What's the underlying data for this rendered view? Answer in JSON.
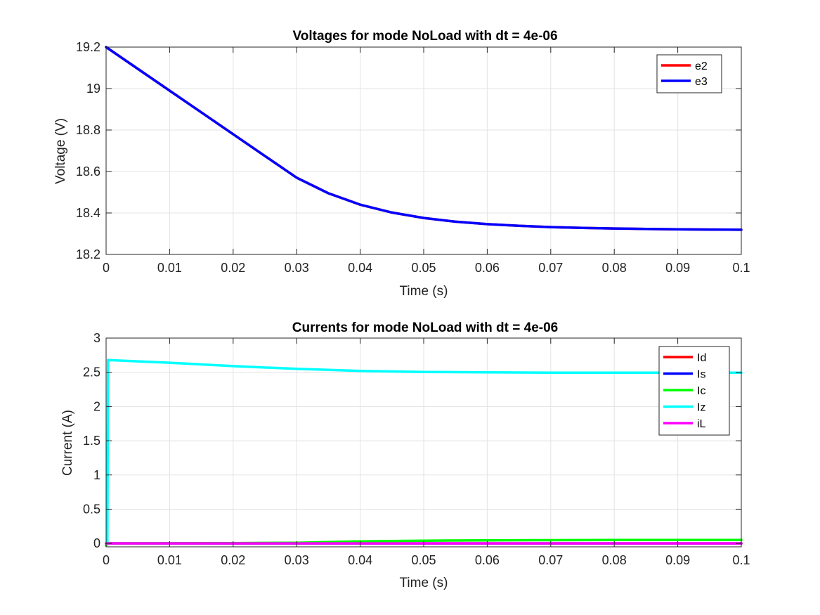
{
  "chart_data": [
    {
      "type": "line",
      "title": "Voltages for mode NoLoad with dt = 4e-06",
      "xlabel": "Time (s)",
      "ylabel": "Voltage (V)",
      "xlim": [
        0,
        0.1
      ],
      "ylim": [
        18.2,
        19.2
      ],
      "xticks": [
        0,
        0.01,
        0.02,
        0.03,
        0.04,
        0.05,
        0.06,
        0.07,
        0.08,
        0.09,
        0.1
      ],
      "xtick_labels": [
        "0",
        "0.01",
        "0.02",
        "0.03",
        "0.04",
        "0.05",
        "0.06",
        "0.07",
        "0.08",
        "0.09",
        "0.1"
      ],
      "yticks": [
        18.2,
        18.4,
        18.6,
        18.8,
        19,
        19.2
      ],
      "ytick_labels": [
        "18.2",
        "18.4",
        "18.6",
        "18.8",
        "19",
        "19.2"
      ],
      "grid": true,
      "legend_position": "top-right",
      "x": [
        0,
        0.005,
        0.01,
        0.015,
        0.02,
        0.025,
        0.03,
        0.035,
        0.04,
        0.045,
        0.05,
        0.055,
        0.06,
        0.065,
        0.07,
        0.075,
        0.08,
        0.085,
        0.09,
        0.095,
        0.1
      ],
      "series": [
        {
          "name": "e2",
          "color": "#ff0000",
          "values": [
            19.2,
            19.095,
            18.99,
            18.885,
            18.78,
            18.675,
            18.57,
            18.495,
            18.44,
            18.402,
            18.376,
            18.358,
            18.346,
            18.338,
            18.332,
            18.328,
            18.325,
            18.323,
            18.321,
            18.32,
            18.319
          ]
        },
        {
          "name": "e3",
          "color": "#0000ff",
          "values": [
            19.2,
            19.095,
            18.99,
            18.885,
            18.78,
            18.675,
            18.57,
            18.495,
            18.44,
            18.402,
            18.376,
            18.358,
            18.346,
            18.338,
            18.332,
            18.328,
            18.325,
            18.323,
            18.321,
            18.32,
            18.319
          ]
        }
      ]
    },
    {
      "type": "line",
      "title": "Currents for mode NoLoad with dt = 4e-06",
      "xlabel": "Time (s)",
      "ylabel": "Current (A)",
      "xlim": [
        0,
        0.1
      ],
      "ylim": [
        -0.05,
        3
      ],
      "xticks": [
        0,
        0.01,
        0.02,
        0.03,
        0.04,
        0.05,
        0.06,
        0.07,
        0.08,
        0.09,
        0.1
      ],
      "xtick_labels": [
        "0",
        "0.01",
        "0.02",
        "0.03",
        "0.04",
        "0.05",
        "0.06",
        "0.07",
        "0.08",
        "0.09",
        "0.1"
      ],
      "yticks": [
        0,
        0.5,
        1,
        1.5,
        2,
        2.5,
        3
      ],
      "ytick_labels": [
        "0",
        "0.5",
        "1",
        "1.5",
        "2",
        "2.5",
        "3"
      ],
      "grid": true,
      "legend_position": "top-right",
      "series": [
        {
          "name": "Id",
          "color": "#ff0000",
          "x": [
            0,
            0.1
          ],
          "values": [
            0,
            0
          ]
        },
        {
          "name": "Is",
          "color": "#0000ff",
          "x": [
            0,
            0.1
          ],
          "values": [
            0,
            0
          ]
        },
        {
          "name": "Ic",
          "color": "#00ff00",
          "x": [
            0,
            0.0002,
            0.01,
            0.02,
            0.03,
            0.04,
            0.05,
            0.06,
            0.07,
            0.08,
            0.09,
            0.1
          ],
          "values": [
            -0.03,
            0,
            0.002,
            0.004,
            0.01,
            0.03,
            0.04,
            0.045,
            0.048,
            0.05,
            0.05,
            0.05
          ]
        },
        {
          "name": "Iz",
          "color": "#00ffff",
          "x": [
            0,
            0.0002,
            0.0003,
            0.01,
            0.02,
            0.03,
            0.04,
            0.05,
            0.06,
            0.07,
            0.08,
            0.09,
            0.1
          ],
          "values": [
            0,
            0,
            2.68,
            2.64,
            2.59,
            2.55,
            2.52,
            2.505,
            2.5,
            2.495,
            2.495,
            2.495,
            2.495
          ]
        },
        {
          "name": "iL",
          "color": "#ff00ff",
          "x": [
            0,
            0.1
          ],
          "values": [
            0,
            0
          ]
        }
      ]
    }
  ]
}
